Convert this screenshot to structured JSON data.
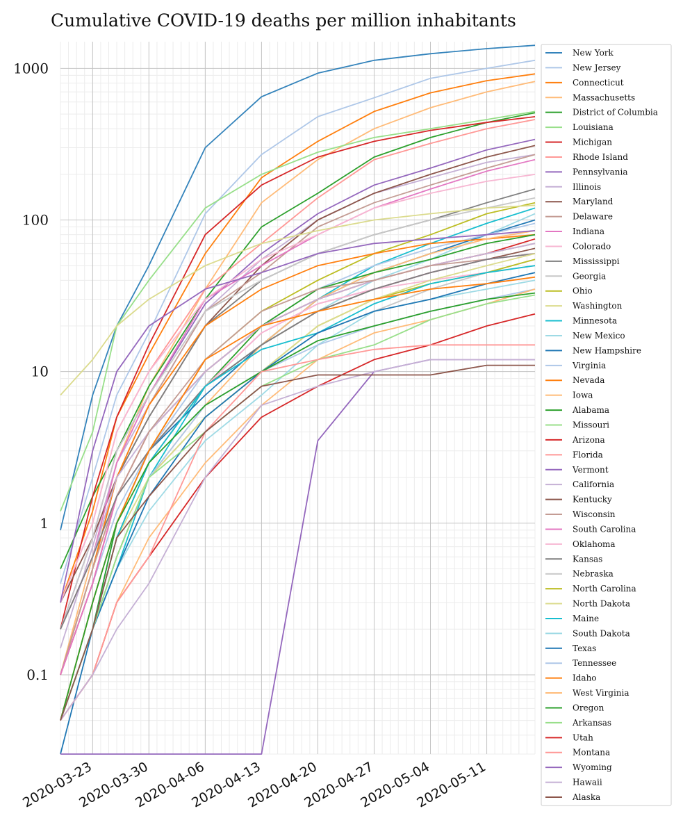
{
  "chart_data": {
    "type": "line",
    "title": "Cumulative COVID-19 deaths per million inhabitants",
    "xlabel": "",
    "ylabel": "",
    "yscale": "log",
    "ylim": [
      0.03,
      1500
    ],
    "xlim": [
      "2020-03-19",
      "2020-05-17"
    ],
    "grid": true,
    "legend_position": "right",
    "x_ticks": [
      "2020-03-23",
      "2020-03-30",
      "2020-04-06",
      "2020-04-13",
      "2020-04-20",
      "2020-04-27",
      "2020-05-04",
      "2020-05-11"
    ],
    "y_ticks": [
      {
        "value": 0.1,
        "label": "0.1"
      },
      {
        "value": 1,
        "label": "1"
      },
      {
        "value": 10,
        "label": "10"
      },
      {
        "value": 100,
        "label": "100"
      },
      {
        "value": 1000,
        "label": "1000"
      }
    ],
    "x": [
      "2020-03-19",
      "2020-03-23",
      "2020-03-26",
      "2020-03-30",
      "2020-04-06",
      "2020-04-13",
      "2020-04-20",
      "2020-04-27",
      "2020-05-04",
      "2020-05-11",
      "2020-05-17"
    ],
    "series": [
      {
        "name": "New York",
        "color": "#3383bb",
        "values": [
          0.9,
          7,
          20,
          50,
          300,
          650,
          930,
          1130,
          1250,
          1350,
          1420
        ]
      },
      {
        "name": "New Jersey",
        "color": "#aec7e8",
        "values": [
          0.4,
          2,
          7,
          18,
          110,
          270,
          480,
          640,
          860,
          1000,
          1130
        ]
      },
      {
        "name": "Connecticut",
        "color": "#ff7f0e",
        "values": [
          0.3,
          1.2,
          5,
          13,
          60,
          190,
          330,
          520,
          690,
          830,
          920
        ]
      },
      {
        "name": "Massachusetts",
        "color": "#ffbb78",
        "values": [
          0.1,
          0.6,
          2.5,
          8,
          35,
          130,
          250,
          400,
          550,
          700,
          820
        ]
      },
      {
        "name": "District of Columbia",
        "color": "#2ca02c",
        "values": [
          0.5,
          1.5,
          3,
          8,
          30,
          90,
          150,
          260,
          350,
          440,
          510
        ]
      },
      {
        "name": "Louisiana",
        "color": "#98df8a",
        "values": [
          1.2,
          4,
          20,
          40,
          120,
          200,
          280,
          350,
          400,
          460,
          520
        ]
      },
      {
        "name": "Michigan",
        "color": "#d62728",
        "values": [
          0.2,
          1.5,
          5,
          15,
          80,
          170,
          260,
          330,
          390,
          440,
          480
        ]
      },
      {
        "name": "Rhode Island",
        "color": "#ff9896",
        "values": [
          0.3,
          1,
          4,
          10,
          35,
          70,
          140,
          250,
          320,
          400,
          460
        ]
      },
      {
        "name": "Pennsylvania",
        "color": "#9467bd",
        "values": [
          0.2,
          0.8,
          3,
          7,
          28,
          60,
          110,
          170,
          220,
          290,
          340
        ]
      },
      {
        "name": "Illinois",
        "color": "#c5b0d5",
        "values": [
          0.15,
          0.7,
          2.5,
          6,
          25,
          55,
          100,
          150,
          190,
          240,
          270
        ]
      },
      {
        "name": "Maryland",
        "color": "#8c564b",
        "values": [
          0.3,
          0.8,
          2,
          5,
          20,
          50,
          100,
          150,
          200,
          260,
          310
        ]
      },
      {
        "name": "Delaware",
        "color": "#c49c94",
        "values": [
          0.2,
          0.6,
          2,
          6,
          25,
          45,
          90,
          130,
          170,
          220,
          270
        ]
      },
      {
        "name": "Indiana",
        "color": "#e377c2",
        "values": [
          0.2,
          0.6,
          2.5,
          7,
          30,
          50,
          80,
          120,
          160,
          210,
          250
        ]
      },
      {
        "name": "Colorado",
        "color": "#f7b6d2",
        "values": [
          0.3,
          1,
          4,
          10,
          30,
          55,
          80,
          120,
          150,
          180,
          200
        ]
      },
      {
        "name": "Mississippi",
        "color": "#7f7f7f",
        "values": [
          0.1,
          0.5,
          2,
          5,
          20,
          40,
          60,
          80,
          100,
          130,
          160
        ]
      },
      {
        "name": "Georgia",
        "color": "#c7c7c7",
        "values": [
          0.2,
          0.8,
          3,
          7,
          25,
          40,
          60,
          80,
          100,
          120,
          140
        ]
      },
      {
        "name": "Ohio",
        "color": "#bcbd22",
        "values": [
          0.05,
          0.3,
          1,
          3,
          12,
          25,
          40,
          60,
          80,
          110,
          130
        ]
      },
      {
        "name": "Washington",
        "color": "#dbdb8d",
        "values": [
          7,
          12,
          20,
          30,
          50,
          70,
          85,
          100,
          110,
          120,
          125
        ]
      },
      {
        "name": "Minnesota",
        "color": "#17becf",
        "values": [
          0.05,
          0.2,
          0.5,
          2,
          8,
          15,
          30,
          50,
          70,
          95,
          120
        ]
      },
      {
        "name": "New Mexico",
        "color": "#9edae5",
        "values": [
          0.05,
          0.3,
          1,
          3,
          8,
          15,
          25,
          40,
          55,
          80,
          110
        ]
      },
      {
        "name": "New Hampshire",
        "color": "#1f77b4",
        "values": [
          0.05,
          0.2,
          1,
          3,
          7,
          15,
          30,
          45,
          60,
          80,
          100
        ]
      },
      {
        "name": "Virginia",
        "color": "#aec7e8",
        "values": [
          0.1,
          0.4,
          1.2,
          3,
          10,
          20,
          35,
          50,
          65,
          80,
          95
        ]
      },
      {
        "name": "Nevada",
        "color": "#ff7f0e",
        "values": [
          0.1,
          0.5,
          2,
          6,
          20,
          35,
          50,
          60,
          70,
          75,
          80
        ]
      },
      {
        "name": "Iowa",
        "color": "#ffbb78",
        "values": [
          0.05,
          0.2,
          0.6,
          2,
          6,
          15,
          30,
          45,
          60,
          75,
          85
        ]
      },
      {
        "name": "Alabama",
        "color": "#2ca02c",
        "values": [
          0.05,
          0.2,
          1,
          3,
          8,
          20,
          35,
          45,
          55,
          70,
          80
        ]
      },
      {
        "name": "Missouri",
        "color": "#98df8a",
        "values": [
          0.1,
          0.5,
          1.5,
          4,
          10,
          20,
          30,
          40,
          50,
          60,
          70
        ]
      },
      {
        "name": "Arizona",
        "color": "#d62728",
        "values": [
          0.1,
          0.4,
          1.5,
          4,
          10,
          20,
          30,
          40,
          50,
          60,
          75
        ]
      },
      {
        "name": "Florida",
        "color": "#ff9896",
        "values": [
          0.1,
          0.5,
          1.5,
          4,
          10,
          20,
          30,
          40,
          50,
          60,
          70
        ]
      },
      {
        "name": "Vermont",
        "color": "#9467bd",
        "values": [
          0.3,
          3,
          10,
          20,
          35,
          45,
          60,
          70,
          75,
          80,
          85
        ]
      },
      {
        "name": "California",
        "color": "#c5b0d5",
        "values": [
          0.2,
          0.6,
          2,
          4,
          10,
          20,
          30,
          40,
          50,
          60,
          70
        ]
      },
      {
        "name": "Kentucky",
        "color": "#8c564b",
        "values": [
          0.05,
          0.2,
          0.8,
          2.5,
          8,
          15,
          25,
          35,
          45,
          55,
          65
        ]
      },
      {
        "name": "Wisconsin",
        "color": "#c49c94",
        "values": [
          0.1,
          0.5,
          1.5,
          4,
          12,
          25,
          35,
          40,
          50,
          55,
          60
        ]
      },
      {
        "name": "South Carolina",
        "color": "#e377c2",
        "values": [
          0.1,
          0.4,
          1.5,
          3,
          8,
          18,
          28,
          35,
          45,
          55,
          60
        ]
      },
      {
        "name": "Oklahoma",
        "color": "#f7b6d2",
        "values": [
          0.05,
          0.3,
          1,
          3,
          8,
          18,
          28,
          35,
          40,
          45,
          50
        ]
      },
      {
        "name": "Kansas",
        "color": "#7f7f7f",
        "values": [
          0.2,
          0.6,
          1.5,
          3,
          8,
          15,
          25,
          35,
          45,
          55,
          60
        ]
      },
      {
        "name": "Nebraska",
        "color": "#c7c7c7",
        "values": [
          0.05,
          0.2,
          0.6,
          2,
          5,
          10,
          18,
          25,
          35,
          45,
          55
        ]
      },
      {
        "name": "North Carolina",
        "color": "#bcbd22",
        "values": [
          0.05,
          0.2,
          0.6,
          2,
          5,
          10,
          20,
          30,
          38,
          45,
          55
        ]
      },
      {
        "name": "North Dakota",
        "color": "#dbdb8d",
        "values": [
          0.05,
          0.2,
          0.8,
          2,
          5,
          10,
          20,
          30,
          40,
          50,
          60
        ]
      },
      {
        "name": "Maine",
        "color": "#17becf",
        "values": [
          0.05,
          0.2,
          0.8,
          2.5,
          8,
          14,
          18,
          28,
          38,
          45,
          50
        ]
      },
      {
        "name": "South Dakota",
        "color": "#9edae5",
        "values": [
          0.05,
          0.2,
          0.5,
          1.2,
          3.5,
          7,
          15,
          25,
          30,
          35,
          40
        ]
      },
      {
        "name": "Texas",
        "color": "#1f77b4",
        "values": [
          0.03,
          0.2,
          0.5,
          1.5,
          5,
          10,
          18,
          25,
          30,
          38,
          45
        ]
      },
      {
        "name": "Tennessee",
        "color": "#aec7e8",
        "values": [
          0.05,
          0.2,
          0.6,
          2,
          6,
          10,
          15,
          20,
          25,
          30,
          35
        ]
      },
      {
        "name": "Idaho",
        "color": "#ff7f0e",
        "values": [
          0.05,
          0.3,
          1,
          3,
          12,
          20,
          25,
          30,
          35,
          38,
          42
        ]
      },
      {
        "name": "West Virginia",
        "color": "#ffbb78",
        "values": [
          0.05,
          0.1,
          0.3,
          0.8,
          2.5,
          6,
          12,
          18,
          22,
          28,
          35
        ]
      },
      {
        "name": "Oregon",
        "color": "#2ca02c",
        "values": [
          0.05,
          0.3,
          1,
          2.5,
          6,
          10,
          16,
          20,
          25,
          30,
          33
        ]
      },
      {
        "name": "Arkansas",
        "color": "#98df8a",
        "values": [
          0.05,
          0.2,
          0.6,
          2,
          4,
          8,
          12,
          15,
          22,
          28,
          32
        ]
      },
      {
        "name": "Utah",
        "color": "#d62728",
        "values": [
          0.05,
          0.1,
          0.3,
          0.6,
          2,
          5,
          8,
          12,
          15,
          20,
          24
        ]
      },
      {
        "name": "Montana",
        "color": "#ff9896",
        "values": [
          0.05,
          0.1,
          0.3,
          0.6,
          4,
          10,
          12,
          14,
          15,
          15,
          15
        ]
      },
      {
        "name": "Wyoming",
        "color": "#9467bd",
        "values": [
          0.03,
          0.03,
          0.03,
          0.03,
          0.03,
          0.03,
          3.5,
          10,
          12,
          12,
          12
        ]
      },
      {
        "name": "Hawaii",
        "color": "#c5b0d5",
        "values": [
          0.05,
          0.1,
          0.2,
          0.4,
          2,
          6,
          8,
          10,
          12,
          12,
          12
        ]
      },
      {
        "name": "Alaska",
        "color": "#8c564b",
        "values": [
          0.05,
          0.2,
          0.8,
          1.5,
          4,
          8,
          9.5,
          9.5,
          9.5,
          11,
          11
        ]
      }
    ]
  }
}
